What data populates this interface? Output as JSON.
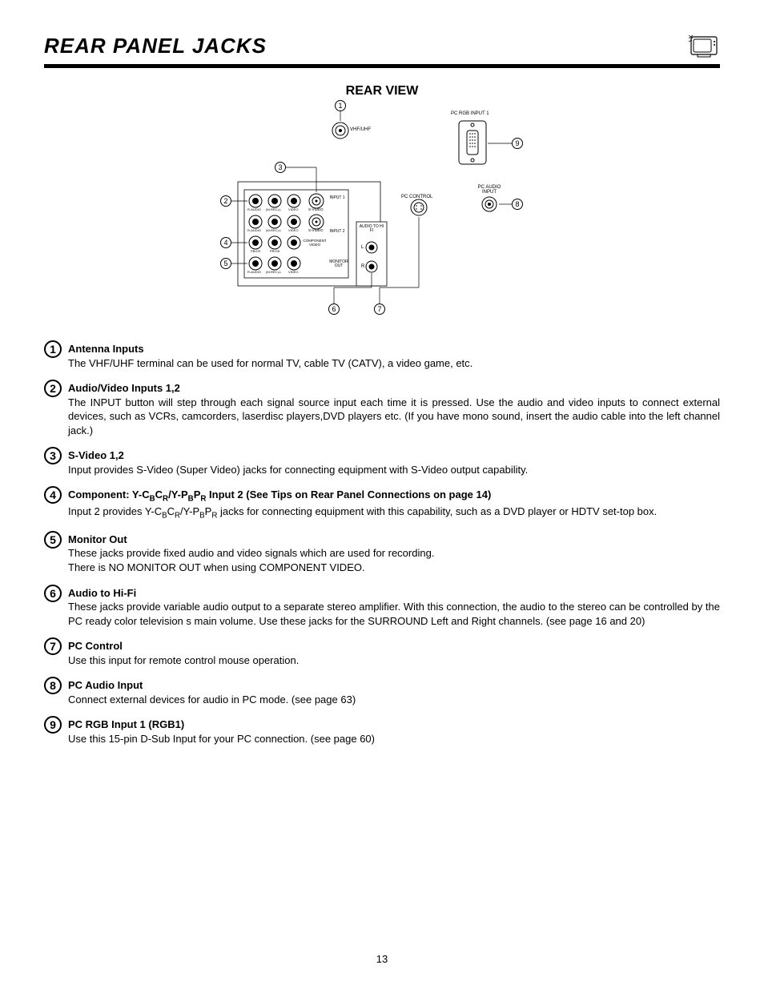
{
  "header": {
    "title": "REAR PANEL JACKS"
  },
  "subtitle": "REAR VIEW",
  "diagram": {
    "callouts": [
      "1",
      "2",
      "3",
      "4",
      "5",
      "6",
      "7",
      "8",
      "9"
    ],
    "labels": {
      "vhf": "VHF/UHF",
      "pcrgb": "PC RGB INPUT 1",
      "pcaudio": "PC AUDIO INPUT",
      "pccontrol": "PC CONTROL",
      "input1": "INPUT 1",
      "input2": "INPUT 2",
      "monitorout": "MONITOR OUT",
      "audiohifi": "AUDIO TO HI FI",
      "svideo": "S-VIDEO",
      "component": "COMPONENT VIDEO",
      "raudio": "R-AUDIO",
      "mrecl": "(M-REC)-L",
      "video": "VIDEO",
      "pbcr": "PB/CR",
      "prcb": "PR/CB",
      "L": "L",
      "R": "R"
    }
  },
  "items": [
    {
      "num": "1",
      "title": "Antenna Inputs",
      "body": "The VHF/UHF terminal can be used for normal TV, cable TV (CATV), a video game, etc."
    },
    {
      "num": "2",
      "title": "Audio/Video Inputs 1,2",
      "body": "The INPUT button will step through each signal source input each time it is pressed.  Use the audio and video inputs to connect external devices, such as VCRs, camcorders, laserdisc players,DVD players etc.  (If you have mono sound, insert the audio cable into the left channel jack.)"
    },
    {
      "num": "3",
      "title": "S-Video 1,2",
      "body": "Input provides S-Video (Super Video) jacks for connecting equipment with S-Video output capability."
    },
    {
      "num": "4",
      "title_html": "Component: Y-C<sub>B</sub>C<sub>R</sub>/Y-P<sub>B</sub>P<sub>R</sub> Input 2 (See Tips on Rear Panel Connections on page 14)",
      "body_html": "Input 2 provides Y-C<sub>B</sub>C<sub>R</sub>/Y-P<sub>B</sub>P<sub>R</sub> jacks for connecting equipment with this capability, such as a DVD player or HDTV set-top box."
    },
    {
      "num": "5",
      "title": "Monitor Out",
      "body": "These jacks provide fixed audio and video signals which are used for recording.\nThere is NO MONITOR OUT when using COMPONENT VIDEO."
    },
    {
      "num": "6",
      "title": "Audio to Hi-Fi",
      "body": "These jacks provide variable audio output to a separate stereo amplifier. With this connection, the audio to the stereo can be controlled by the PC ready color television s main volume.  Use these jacks for the SURROUND Left and Right channels. (see page 16 and 20)"
    },
    {
      "num": "7",
      "title": "PC Control",
      "body": "Use this input for remote control mouse operation."
    },
    {
      "num": "8",
      "title": "PC Audio Input",
      "body": "Connect external devices for audio in PC mode. (see page 63)"
    },
    {
      "num": "9",
      "title": "PC RGB Input 1 (RGB1)",
      "body": "Use this 15-pin D-Sub Input for your PC connection. (see page 60)"
    }
  ],
  "page_number": "13"
}
